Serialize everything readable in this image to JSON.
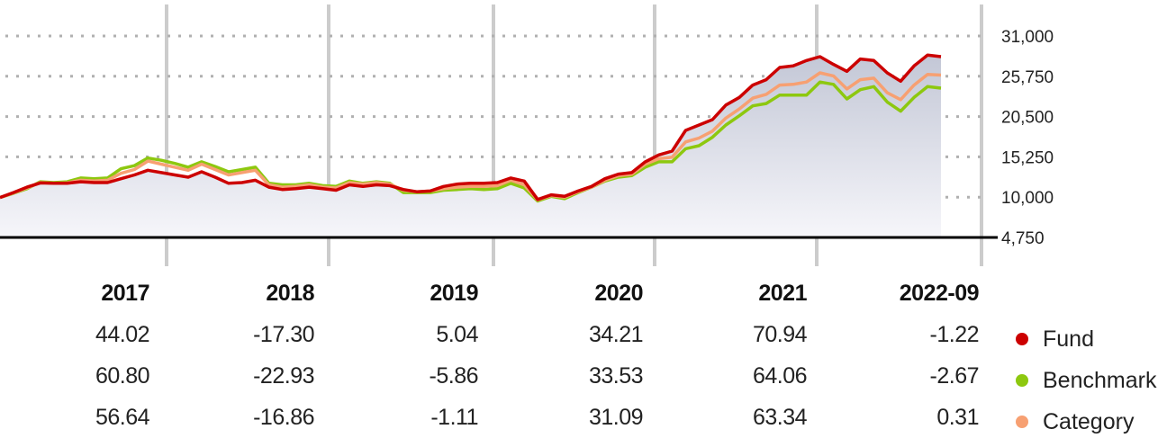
{
  "chart_data": {
    "type": "line",
    "y_ticks": [
      "31,000",
      "25,750",
      "20,500",
      "15,250",
      "10,000",
      "4,750"
    ],
    "ylim": [
      4750,
      31000
    ],
    "grid": true,
    "year_labels": [
      "2017",
      "2018",
      "2019",
      "2020",
      "2021",
      "2022-09"
    ],
    "series": [
      {
        "name": "Fund",
        "color": "#cc0000",
        "annual_returns": [
          "44.02",
          "-17.30",
          "5.04",
          "34.21",
          "70.94",
          "-1.22"
        ],
        "values": [
          9950,
          10600,
          11300,
          11850,
          11800,
          11800,
          12000,
          11900,
          11900,
          12400,
          12900,
          13500,
          13200,
          12900,
          12600,
          13300,
          12600,
          11800,
          11900,
          12200,
          11300,
          11000,
          11100,
          11300,
          11100,
          10900,
          11600,
          11400,
          11600,
          11500,
          11000,
          10700,
          10800,
          11400,
          11700,
          11800,
          11800,
          11900,
          12500,
          12100,
          9700,
          10300,
          10100,
          10800,
          11400,
          12400,
          13000,
          13200,
          14600,
          15500,
          16000,
          18700,
          19400,
          20100,
          22000,
          23000,
          24600,
          25300,
          26900,
          27100,
          27800,
          28300,
          27300,
          26400,
          28000,
          27800,
          26200,
          25100,
          27100,
          28500,
          28300
        ]
      },
      {
        "name": "Benchmark",
        "color": "#8dc80f",
        "annual_returns": [
          "60.80",
          "-22.93",
          "-5.86",
          "33.53",
          "64.06",
          "-2.67"
        ],
        "values": [
          9950,
          10500,
          11100,
          12000,
          11900,
          12000,
          12500,
          12400,
          12500,
          13700,
          14100,
          15100,
          14800,
          14400,
          13900,
          14600,
          14000,
          13300,
          13600,
          13900,
          11800,
          11600,
          11600,
          11800,
          11500,
          11400,
          12100,
          11800,
          12000,
          11800,
          10600,
          10600,
          10600,
          10900,
          11000,
          11100,
          11000,
          11100,
          11800,
          11200,
          9500,
          10100,
          9800,
          10600,
          11300,
          12100,
          12600,
          12800,
          13900,
          14600,
          14600,
          16300,
          16700,
          17800,
          19400,
          20600,
          21900,
          22200,
          23300,
          23300,
          23300,
          25000,
          24700,
          22800,
          24000,
          24400,
          22400,
          21200,
          23000,
          24400,
          24200
        ]
      },
      {
        "name": "Category",
        "color": "#f7a072",
        "annual_returns": [
          "56.64",
          "-16.86",
          "-1.11",
          "31.09",
          "63.34",
          "0.31"
        ],
        "values": [
          9950,
          10550,
          11200,
          11900,
          11800,
          11850,
          12200,
          12100,
          12200,
          13100,
          13600,
          14700,
          14300,
          13900,
          13500,
          14300,
          13600,
          12900,
          13200,
          13500,
          11600,
          11300,
          11400,
          11600,
          11300,
          11200,
          11900,
          11700,
          11900,
          11700,
          10900,
          10700,
          10800,
          11100,
          11300,
          11400,
          11400,
          11500,
          12200,
          11600,
          9650,
          10200,
          10000,
          10700,
          11300,
          12200,
          12800,
          13000,
          14300,
          15000,
          15200,
          17200,
          17700,
          18600,
          20300,
          21500,
          22900,
          23400,
          24600,
          24700,
          25000,
          26200,
          25800,
          24100,
          25300,
          25500,
          23600,
          22700,
          24600,
          26000,
          25900
        ]
      }
    ]
  }
}
